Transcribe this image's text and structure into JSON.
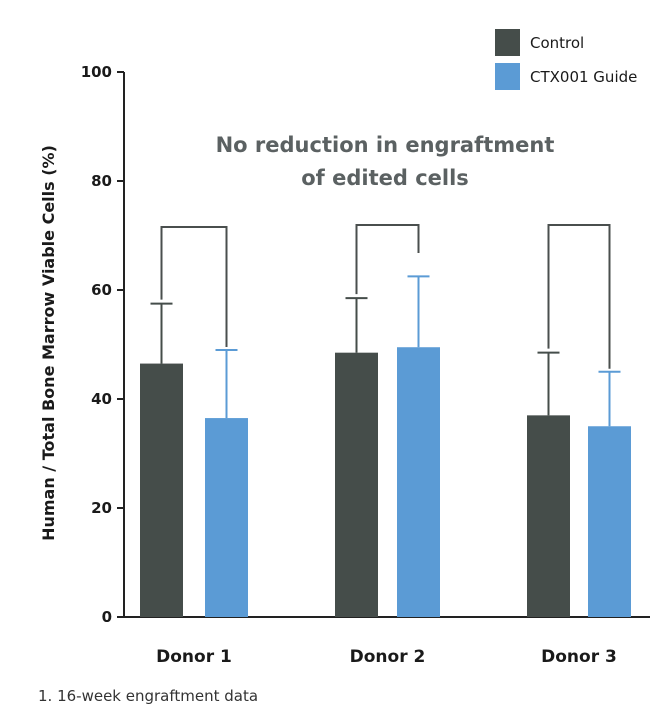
{
  "chart_data": {
    "type": "bar",
    "categories": [
      "Donor 1",
      "Donor 2",
      "Donor 3"
    ],
    "series": [
      {
        "name": "Control",
        "color": "#454d4a",
        "values": [
          46.5,
          48.5,
          37
        ],
        "error_upper": [
          57.5,
          58.5,
          48.5
        ]
      },
      {
        "name": "CTX001 Guide",
        "color": "#5b9bd5",
        "values": [
          36.5,
          49.5,
          35
        ],
        "error_upper": [
          49,
          62.5,
          45
        ]
      }
    ],
    "ylabel": "Human / Total Bone Marrow Viable Cells (%)",
    "xlabel": "",
    "ylim": [
      0,
      100
    ],
    "yticks": [
      "0",
      "20",
      "40",
      "60",
      "80",
      "100"
    ],
    "annotation": [
      "No reduction in engraftment",
      "of edited cells"
    ],
    "comparison_brackets": true,
    "legend_position": "top-right",
    "grid": false
  },
  "footnote": "1. 16-week engraftment data"
}
